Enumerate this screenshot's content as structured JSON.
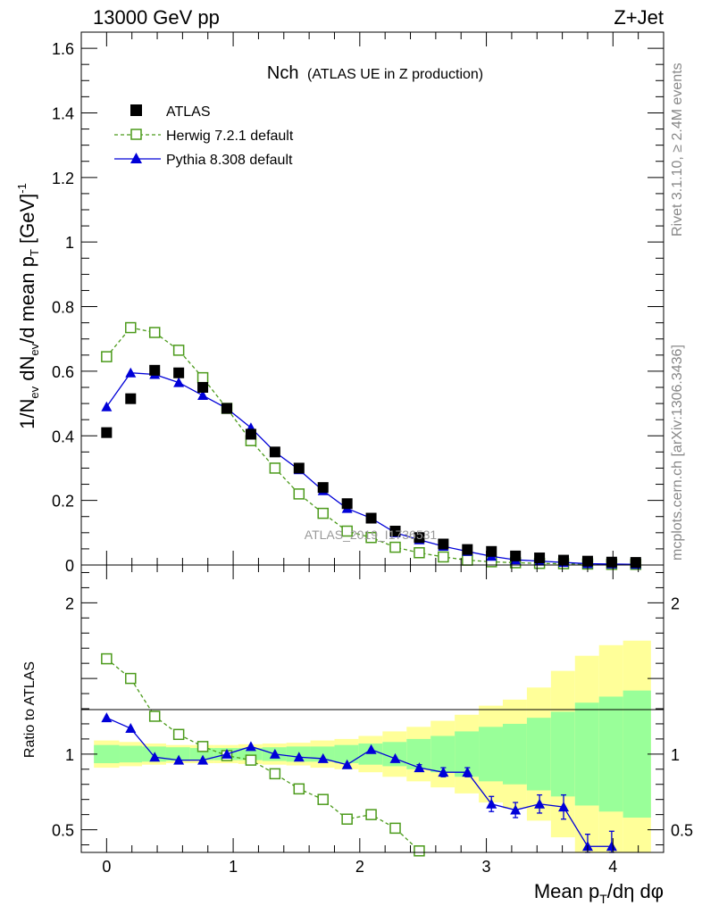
{
  "header": {
    "energy_label": "13000 GeV pp",
    "process_label": "Z+Jet",
    "plot_title_main": "Nch",
    "plot_title_sub": "(ATLAS UE in Z production)",
    "watermark": "ATLAS_2019_I1736531",
    "side_rivet": "Rivet 3.1.10, ≥ 2.4M events",
    "side_mcplots": "mcplots.cern.ch [arXiv:1306.3436]"
  },
  "colors": {
    "atlas": "#000000",
    "herwig": "#4b9a1a",
    "pythia": "#0000d8",
    "band_inner": "#99ff99",
    "band_outer": "#ffff99"
  },
  "chart_data": {
    "type": "scatter",
    "xlabel": "Mean p_T/dη dφ",
    "main": {
      "ylabel": "1/N_ev dN_ev/d mean p_T [GeV]^-1",
      "xlim": [
        -0.2,
        4.4
      ],
      "ylim": [
        0,
        1.65
      ],
      "yticks": [
        "0",
        "0.2",
        "0.4",
        "0.6",
        "0.8",
        "1",
        "1.2",
        "1.4",
        "1.6"
      ],
      "ytick_values": [
        0,
        0.2,
        0.4,
        0.6,
        0.8,
        1.0,
        1.2,
        1.4,
        1.6
      ],
      "legend_position": "top-left",
      "series": [
        {
          "name": "ATLAS",
          "style": "square-filled",
          "x": [
            0,
            0.19,
            0.38,
            0.57,
            0.76,
            0.95,
            1.14,
            1.33,
            1.52,
            1.71,
            1.9,
            2.09,
            2.28,
            2.47,
            2.66,
            2.85,
            3.04,
            3.23,
            3.42,
            3.61,
            3.8,
            3.99,
            4.18
          ],
          "y": [
            0.41,
            0.515,
            0.603,
            0.595,
            0.55,
            0.485,
            0.405,
            0.35,
            0.3,
            0.24,
            0.19,
            0.145,
            0.105,
            0.085,
            0.065,
            0.048,
            0.042,
            0.028,
            0.022,
            0.015,
            0.012,
            0.009,
            0.008
          ]
        },
        {
          "name": "Herwig 7.2.1 default",
          "style": "square-open-dashed",
          "x": [
            0,
            0.19,
            0.38,
            0.57,
            0.76,
            0.95,
            1.14,
            1.33,
            1.52,
            1.71,
            1.9,
            2.09,
            2.28,
            2.47,
            2.66,
            2.85,
            3.04,
            3.23,
            3.42,
            3.61,
            3.8,
            3.99,
            4.18
          ],
          "y": [
            0.645,
            0.735,
            0.72,
            0.665,
            0.58,
            0.485,
            0.385,
            0.3,
            0.22,
            0.16,
            0.105,
            0.085,
            0.055,
            0.038,
            0.025,
            0.015,
            0.01,
            0.007,
            0.005,
            0.004,
            0.003,
            0.002,
            0.002
          ]
        },
        {
          "name": "Pythia 8.308 default",
          "style": "triangle-filled-solid",
          "x": [
            0,
            0.19,
            0.38,
            0.57,
            0.76,
            0.95,
            1.14,
            1.33,
            1.52,
            1.71,
            1.9,
            2.09,
            2.28,
            2.47,
            2.66,
            2.85,
            3.04,
            3.23,
            3.42,
            3.61,
            3.8,
            3.99,
            4.18
          ],
          "y": [
            0.49,
            0.595,
            0.59,
            0.565,
            0.525,
            0.485,
            0.425,
            0.35,
            0.295,
            0.23,
            0.175,
            0.145,
            0.1,
            0.078,
            0.058,
            0.042,
            0.027,
            0.016,
            0.012,
            0.008,
            0.004,
            0.003,
            0.002
          ]
        }
      ]
    },
    "ratio": {
      "ylabel": "Ratio to ATLAS",
      "ylim": [
        0.35,
        2.25
      ],
      "yticks": [
        "0.5",
        "1",
        "2"
      ],
      "ytick_values": [
        0.5,
        1,
        2
      ],
      "xticks": [
        "0",
        "1",
        "2",
        "3",
        "4"
      ],
      "xtick_values": [
        0,
        1,
        2,
        3,
        4
      ],
      "band_edges": [
        -0.1,
        0.1,
        0.28,
        0.47,
        0.66,
        0.85,
        1.04,
        1.23,
        1.42,
        1.61,
        1.8,
        1.99,
        2.18,
        2.37,
        2.56,
        2.75,
        2.94,
        3.13,
        3.32,
        3.51,
        3.7,
        3.89,
        4.08,
        4.3
      ],
      "band_inner": [
        0.06,
        0.055,
        0.05,
        0.045,
        0.04,
        0.04,
        0.04,
        0.045,
        0.05,
        0.05,
        0.06,
        0.07,
        0.08,
        0.1,
        0.12,
        0.15,
        0.18,
        0.2,
        0.24,
        0.28,
        0.34,
        0.38,
        0.42
      ],
      "band_outer": [
        0.09,
        0.08,
        0.07,
        0.06,
        0.06,
        0.06,
        0.065,
        0.07,
        0.075,
        0.09,
        0.1,
        0.12,
        0.15,
        0.18,
        0.22,
        0.26,
        0.32,
        0.36,
        0.44,
        0.55,
        0.65,
        0.72,
        0.75
      ],
      "series": [
        {
          "name": "Herwig 7.2.1 default",
          "x": [
            0,
            0.19,
            0.38,
            0.57,
            0.76,
            0.95,
            1.14,
            1.33,
            1.52,
            1.71,
            1.9,
            2.09,
            2.28,
            2.47
          ],
          "y": [
            1.63,
            1.5,
            1.25,
            1.13,
            1.05,
            0.99,
            0.96,
            0.87,
            0.77,
            0.7,
            0.57,
            0.6,
            0.51,
            0.36
          ],
          "err": [
            0,
            0,
            0,
            0,
            0,
            0,
            0,
            0,
            0,
            0,
            0,
            0,
            0.02,
            0
          ]
        },
        {
          "name": "Pythia 8.308 default",
          "x": [
            0,
            0.19,
            0.38,
            0.57,
            0.76,
            0.95,
            1.14,
            1.33,
            1.52,
            1.71,
            1.9,
            2.09,
            2.28,
            2.47,
            2.66,
            2.85,
            3.04,
            3.23,
            3.42,
            3.61,
            3.8,
            3.99
          ],
          "y": [
            1.24,
            1.17,
            0.98,
            0.96,
            0.96,
            1.0,
            1.05,
            1.0,
            0.98,
            0.97,
            0.93,
            1.03,
            0.97,
            0.91,
            0.88,
            0.88,
            0.67,
            0.63,
            0.67,
            0.65,
            0.39,
            0.39
          ],
          "err": [
            0,
            0,
            0,
            0,
            0,
            0,
            0,
            0,
            0,
            0,
            0,
            0,
            0,
            0.02,
            0.03,
            0.03,
            0.05,
            0.05,
            0.06,
            0.08,
            0.08,
            0.1
          ]
        }
      ]
    }
  }
}
